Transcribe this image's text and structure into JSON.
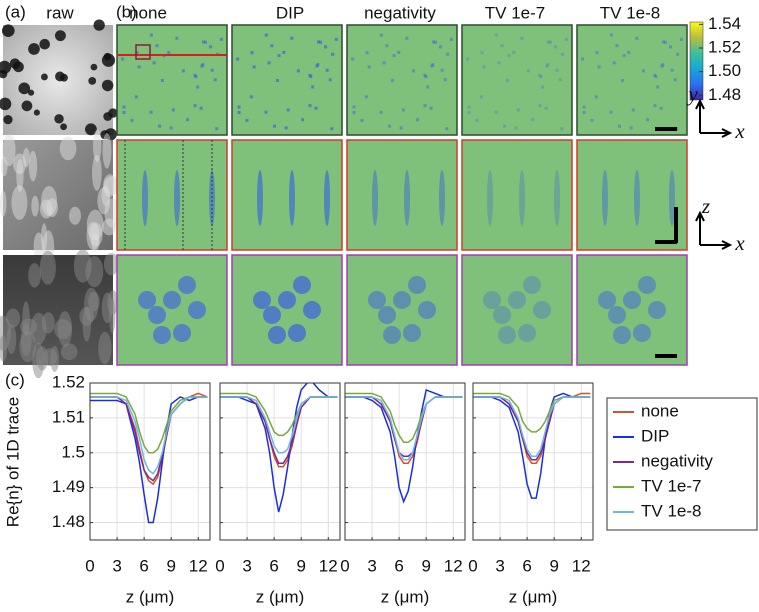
{
  "panel_labels": [
    "(a)",
    "(b)",
    "(c)"
  ],
  "column_titles": [
    "raw",
    "none",
    "DIP",
    "negativity",
    "TV 1e-7",
    "TV 1e-8"
  ],
  "axis_arrows": [
    {
      "vertical": "y",
      "horizontal": "x"
    },
    {
      "vertical": "z",
      "horizontal": "x"
    }
  ],
  "colorbar": {
    "lim": [
      1.476,
      1.542
    ],
    "ticks": [
      1.54,
      1.52,
      {
        "value": 1.5,
        "label": "1.50"
      },
      1.48
    ]
  },
  "legend": [
    {
      "name": "none",
      "color": "#d9502a"
    },
    {
      "name": "DIP",
      "color": "#1a2ee0"
    },
    {
      "name": "negativity",
      "color": "#7a2a8c"
    },
    {
      "name": "TV 1e-7",
      "color": "#7aa83a"
    },
    {
      "name": "TV 1e-8",
      "color": "#6cb8ea"
    }
  ],
  "chart_data": [
    {
      "type": "line",
      "y_label": "Re{n} of 1D trace",
      "x_label": "z (μm)",
      "ytick_labels": true,
      "xlim": [
        0,
        13.3
      ],
      "xticks": [
        0,
        3,
        6,
        9,
        12
      ],
      "ylim": [
        1.475,
        1.52
      ],
      "yticks": [
        1.48,
        1.49,
        1.5,
        1.51,
        1.52
      ],
      "grid": true,
      "x": [
        0,
        1,
        2,
        3,
        4,
        5,
        5.5,
        6,
        6.5,
        7,
        7.5,
        8,
        8.5,
        9,
        10,
        11,
        12,
        13
      ],
      "series": [
        {
          "values": [
            1.516,
            1.516,
            1.516,
            1.516,
            1.514,
            1.507,
            1.501,
            1.495,
            1.492,
            1.491,
            1.493,
            1.498,
            1.505,
            1.511,
            1.514,
            1.516,
            1.517,
            1.516
          ]
        },
        {
          "values": [
            1.515,
            1.515,
            1.515,
            1.515,
            1.514,
            1.504,
            1.497,
            1.488,
            1.48,
            1.48,
            1.487,
            1.497,
            1.507,
            1.514,
            1.516,
            1.515,
            1.516,
            1.516
          ]
        },
        {
          "values": [
            1.516,
            1.516,
            1.516,
            1.516,
            1.514,
            1.506,
            1.5,
            1.495,
            1.493,
            1.492,
            1.494,
            1.499,
            1.505,
            1.511,
            1.514,
            1.516,
            1.516,
            1.516
          ]
        },
        {
          "values": [
            1.517,
            1.517,
            1.517,
            1.517,
            1.516,
            1.511,
            1.506,
            1.502,
            1.5,
            1.5,
            1.501,
            1.504,
            1.508,
            1.512,
            1.515,
            1.516,
            1.516,
            1.516
          ]
        },
        {
          "values": [
            1.516,
            1.516,
            1.516,
            1.516,
            1.515,
            1.509,
            1.504,
            1.498,
            1.495,
            1.494,
            1.496,
            1.5,
            1.506,
            1.511,
            1.514,
            1.516,
            1.516,
            1.516
          ]
        }
      ]
    },
    {
      "type": "line",
      "x_label": "z (μm)",
      "ytick_labels": false,
      "xlim": [
        0,
        13.3
      ],
      "xticks": [
        0,
        3,
        6,
        9,
        12
      ],
      "ylim": [
        1.475,
        1.52
      ],
      "yticks": [
        1.48,
        1.49,
        1.5,
        1.51,
        1.52
      ],
      "grid": true,
      "x": [
        0,
        1,
        2,
        3,
        4,
        5,
        5.5,
        6,
        6.5,
        7,
        7.5,
        8,
        8.5,
        9,
        10,
        11,
        12,
        13
      ],
      "series": [
        {
          "values": [
            1.516,
            1.516,
            1.516,
            1.516,
            1.514,
            1.509,
            1.504,
            1.499,
            1.496,
            1.496,
            1.498,
            1.502,
            1.508,
            1.513,
            1.516,
            1.516,
            1.516,
            1.516
          ]
        },
        {
          "values": [
            1.516,
            1.516,
            1.516,
            1.515,
            1.514,
            1.507,
            1.5,
            1.49,
            1.483,
            1.488,
            1.496,
            1.505,
            1.513,
            1.518,
            1.521,
            1.518,
            1.516,
            1.516
          ]
        },
        {
          "values": [
            1.516,
            1.516,
            1.516,
            1.516,
            1.514,
            1.509,
            1.504,
            1.5,
            1.497,
            1.497,
            1.499,
            1.503,
            1.508,
            1.513,
            1.516,
            1.516,
            1.516,
            1.516
          ]
        },
        {
          "values": [
            1.517,
            1.517,
            1.517,
            1.517,
            1.516,
            1.512,
            1.509,
            1.506,
            1.505,
            1.505,
            1.506,
            1.508,
            1.511,
            1.514,
            1.516,
            1.516,
            1.516,
            1.516
          ]
        },
        {
          "values": [
            1.516,
            1.516,
            1.516,
            1.516,
            1.515,
            1.51,
            1.506,
            1.502,
            1.5,
            1.5,
            1.501,
            1.505,
            1.51,
            1.514,
            1.516,
            1.516,
            1.516,
            1.516
          ]
        }
      ]
    },
    {
      "type": "line",
      "x_label": "z (μm)",
      "ytick_labels": false,
      "xlim": [
        0,
        13.3
      ],
      "xticks": [
        0,
        3,
        6,
        9,
        12
      ],
      "ylim": [
        1.475,
        1.52
      ],
      "yticks": [
        1.48,
        1.49,
        1.5,
        1.51,
        1.52
      ],
      "grid": true,
      "x": [
        0,
        1,
        2,
        3,
        4,
        5,
        5.5,
        6,
        6.5,
        7,
        7.5,
        8,
        8.5,
        9,
        10,
        11,
        12,
        13
      ],
      "series": [
        {
          "values": [
            1.516,
            1.516,
            1.516,
            1.516,
            1.514,
            1.509,
            1.504,
            1.499,
            1.497,
            1.497,
            1.499,
            1.503,
            1.509,
            1.514,
            1.516,
            1.516,
            1.516,
            1.516
          ]
        },
        {
          "values": [
            1.516,
            1.516,
            1.516,
            1.515,
            1.513,
            1.506,
            1.499,
            1.49,
            1.486,
            1.489,
            1.496,
            1.505,
            1.512,
            1.518,
            1.517,
            1.516,
            1.516,
            1.516
          ]
        },
        {
          "values": [
            1.516,
            1.516,
            1.516,
            1.516,
            1.514,
            1.509,
            1.504,
            1.5,
            1.499,
            1.499,
            1.5,
            1.504,
            1.509,
            1.514,
            1.516,
            1.516,
            1.516,
            1.516
          ]
        },
        {
          "values": [
            1.517,
            1.517,
            1.517,
            1.517,
            1.516,
            1.512,
            1.508,
            1.505,
            1.503,
            1.503,
            1.504,
            1.507,
            1.511,
            1.514,
            1.516,
            1.516,
            1.516,
            1.516
          ]
        },
        {
          "values": [
            1.516,
            1.516,
            1.516,
            1.516,
            1.515,
            1.51,
            1.505,
            1.5,
            1.498,
            1.498,
            1.5,
            1.505,
            1.51,
            1.514,
            1.516,
            1.516,
            1.516,
            1.516
          ]
        }
      ]
    },
    {
      "type": "line",
      "x_label": "z (μm)",
      "ytick_labels": false,
      "xlim": [
        0,
        13.3
      ],
      "xticks": [
        0,
        3,
        6,
        9,
        12
      ],
      "ylim": [
        1.475,
        1.52
      ],
      "yticks": [
        1.48,
        1.49,
        1.5,
        1.51,
        1.52
      ],
      "grid": true,
      "x": [
        0,
        1,
        2,
        3,
        4,
        5,
        5.5,
        6,
        6.5,
        7,
        7.5,
        8,
        8.5,
        9,
        10,
        11,
        12,
        13
      ],
      "series": [
        {
          "values": [
            1.516,
            1.516,
            1.516,
            1.516,
            1.514,
            1.509,
            1.504,
            1.499,
            1.497,
            1.497,
            1.499,
            1.504,
            1.51,
            1.514,
            1.516,
            1.516,
            1.517,
            1.517
          ]
        },
        {
          "values": [
            1.516,
            1.516,
            1.516,
            1.515,
            1.513,
            1.506,
            1.499,
            1.491,
            1.487,
            1.487,
            1.494,
            1.504,
            1.512,
            1.516,
            1.517,
            1.516,
            1.516,
            1.516
          ]
        },
        {
          "values": [
            1.516,
            1.516,
            1.516,
            1.516,
            1.514,
            1.509,
            1.504,
            1.5,
            1.498,
            1.498,
            1.5,
            1.504,
            1.509,
            1.514,
            1.516,
            1.516,
            1.516,
            1.516
          ]
        },
        {
          "values": [
            1.517,
            1.517,
            1.517,
            1.517,
            1.516,
            1.513,
            1.509,
            1.507,
            1.506,
            1.506,
            1.507,
            1.509,
            1.512,
            1.515,
            1.516,
            1.516,
            1.516,
            1.516
          ]
        },
        {
          "values": [
            1.516,
            1.516,
            1.516,
            1.516,
            1.515,
            1.51,
            1.505,
            1.501,
            1.499,
            1.499,
            1.501,
            1.506,
            1.511,
            1.514,
            1.516,
            1.516,
            1.516,
            1.516
          ]
        }
      ]
    }
  ]
}
